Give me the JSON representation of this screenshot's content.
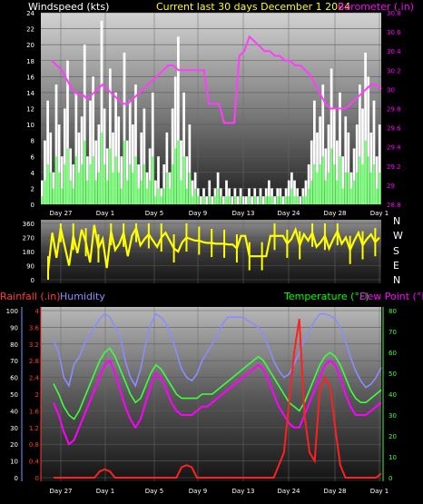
{
  "header": {
    "windspeed_label": "Windspeed (kts)",
    "period_label": "Current last 30 days December 1 2024",
    "barometer_label": "Barometer (.in)"
  },
  "lower_header": {
    "rainfall_label": "Rainfall (.in)",
    "humidity_label": "Humidity",
    "temperature_label": "Temperature (°F)",
    "dewpoint_label": "Dew Point (°F)"
  },
  "colors": {
    "wind_gust": "#ffffff",
    "wind_avg": "#7dff7d",
    "barometer": "#ff3cff",
    "direction": "#ffff00",
    "rain": "#ff2020",
    "humidity": "#8c8cff",
    "temperature": "#40ff40",
    "dewpoint": "#ff00ff",
    "windspeed_label": "#ffffff",
    "period_label": "#ffff00",
    "barometer_label": "#ff00ff",
    "rainfall_label": "#ff3c3c",
    "humidity_label": "#8c8cff",
    "temperature_label": "#00ff00",
    "dewpoint_label": "#ff00ff"
  },
  "chart_data": [
    {
      "type": "bar",
      "name": "wind_and_barometer",
      "x_labels": [
        "Day 27",
        "Day 1",
        "Day 5",
        "Day 9",
        "Day 13",
        "Day 24",
        "Day 28",
        "Day 1"
      ],
      "y_left": {
        "label": "Windspeed (kts)",
        "ylim": [
          0,
          24
        ],
        "ticks": [
          0,
          2,
          4,
          6,
          8,
          10,
          12,
          14,
          16,
          18,
          20,
          22,
          24
        ]
      },
      "y_right": {
        "label": "Barometer (.in)",
        "ylim": [
          28.8,
          30.8
        ],
        "ticks": [
          "28.8",
          "29",
          "29.2",
          "29.4",
          "29.6",
          "29.8",
          "30",
          "30.2",
          "30.4",
          "30.6",
          "30.8"
        ]
      },
      "gust_kts": [
        3,
        8,
        13,
        9,
        4,
        15,
        10,
        6,
        12,
        18,
        7,
        5,
        14,
        9,
        11,
        20,
        6,
        13,
        16,
        8,
        10,
        23,
        12,
        7,
        17,
        9,
        14,
        11,
        6,
        19,
        8,
        13,
        10,
        15,
        5,
        9,
        12,
        4,
        7,
        14,
        3,
        6,
        2,
        5,
        9,
        4,
        12,
        16,
        21,
        8,
        14,
        6,
        10,
        3,
        4,
        2,
        1,
        2,
        1,
        3,
        1,
        2,
        4,
        2,
        1,
        3,
        2,
        1,
        2,
        1,
        2,
        1,
        1,
        2,
        1,
        2,
        1,
        2,
        1,
        2,
        3,
        2,
        1,
        2,
        2,
        1,
        2,
        3,
        4,
        3,
        2,
        1,
        2,
        3,
        5,
        8,
        13,
        9,
        11,
        15,
        7,
        10,
        17,
        12,
        8,
        14,
        6,
        11,
        9,
        4,
        7,
        10,
        15,
        12,
        19,
        16,
        9,
        13,
        6,
        10
      ],
      "avg_kts": [
        1,
        3,
        5,
        4,
        2,
        6,
        4,
        2,
        5,
        7,
        3,
        2,
        6,
        4,
        5,
        8,
        3,
        5,
        6,
        3,
        4,
        9,
        5,
        3,
        7,
        4,
        6,
        4,
        2,
        8,
        3,
        5,
        4,
        6,
        2,
        3,
        5,
        2,
        3,
        6,
        1,
        2,
        1,
        2,
        4,
        2,
        5,
        7,
        8,
        3,
        6,
        2,
        4,
        1,
        2,
        1,
        0,
        1,
        0,
        1,
        0,
        1,
        2,
        1,
        0,
        1,
        1,
        0,
        1,
        0,
        1,
        0,
        0,
        1,
        0,
        1,
        0,
        1,
        0,
        1,
        1,
        1,
        0,
        1,
        1,
        0,
        1,
        1,
        2,
        1,
        1,
        0,
        1,
        1,
        2,
        3,
        5,
        4,
        5,
        6,
        3,
        4,
        7,
        5,
        3,
        6,
        2,
        4,
        4,
        2,
        3,
        4,
        6,
        5,
        8,
        6,
        4,
        5,
        2,
        4
      ],
      "barometer_in": [
        30.3,
        30.25,
        30.2,
        30.1,
        30.0,
        29.95,
        29.95,
        29.9,
        29.95,
        30.0,
        30.05,
        30.0,
        29.95,
        29.9,
        29.85,
        29.85,
        29.9,
        29.95,
        30.0,
        30.05,
        30.1,
        30.15,
        30.2,
        30.25,
        30.25,
        30.2,
        30.2,
        30.2,
        30.2,
        30.2,
        30.2,
        29.85,
        29.85,
        29.85,
        29.65,
        29.65,
        29.65,
        30.35,
        30.4,
        30.55,
        30.5,
        30.45,
        30.4,
        30.4,
        30.35,
        30.35,
        30.3,
        30.3,
        30.25,
        30.25,
        30.2,
        30.15,
        30.05,
        29.95,
        29.85,
        29.8,
        29.8,
        29.8,
        29.8,
        29.85,
        29.9,
        29.95,
        30.0,
        30.05,
        30.05,
        30.0
      ]
    },
    {
      "type": "line",
      "name": "wind_direction",
      "ylim": [
        0,
        360
      ],
      "ticks": [
        0,
        90,
        180,
        270,
        360
      ],
      "direction_labels": [
        "N",
        "W",
        "S",
        "E",
        "N"
      ],
      "direction_deg": [
        60,
        300,
        140,
        330,
        210,
        90,
        280,
        170,
        320,
        240,
        110,
        350,
        200,
        260,
        75,
        310,
        190,
        230,
        300,
        150,
        280,
        330,
        220,
        260,
        290,
        250,
        210,
        270,
        300,
        250,
        200,
        180,
        240,
        270,
        260,
        250,
        250,
        240,
        235,
        235,
        230,
        230,
        230,
        225,
        225,
        200,
        280,
        280,
        150,
        150,
        150,
        150,
        150,
        280,
        280,
        280,
        280,
        230,
        260,
        320,
        220,
        290,
        250,
        300,
        210,
        240,
        280,
        200,
        260,
        310,
        230,
        270,
        190,
        250,
        300,
        220,
        260,
        290,
        240,
        270
      ]
    },
    {
      "type": "line",
      "name": "rain_humidity_temperature",
      "x_labels": [
        "Day 27",
        "Day 1",
        "Day 5",
        "Day 9",
        "Day 13",
        "Day 24",
        "Day 28",
        "Day 1"
      ],
      "y_humidity": {
        "ylim": [
          0,
          100
        ],
        "ticks": [
          0,
          10,
          20,
          30,
          40,
          50,
          60,
          70,
          80,
          90,
          100
        ]
      },
      "y_rain": {
        "ylim": [
          0,
          4
        ],
        "ticks": [
          "0",
          "0.4",
          "0.8",
          "1.2",
          "1.6",
          "2",
          "2.4",
          "2.8",
          "3.2",
          "3.6",
          "4"
        ]
      },
      "y_temp": {
        "ylim": [
          0,
          80
        ],
        "ticks": [
          0,
          10,
          20,
          30,
          40,
          50,
          60,
          70,
          80
        ]
      },
      "humidity_pct": [
        82,
        75,
        60,
        55,
        68,
        72,
        80,
        85,
        90,
        95,
        98,
        96,
        90,
        85,
        70,
        60,
        55,
        65,
        80,
        92,
        98,
        96,
        92,
        85,
        75,
        65,
        60,
        58,
        62,
        70,
        75,
        80,
        85,
        92,
        96,
        96,
        96,
        96,
        94,
        92,
        90,
        86,
        78,
        70,
        64,
        60,
        62,
        68,
        75,
        82,
        88,
        94,
        98,
        98,
        97,
        95,
        90,
        82,
        72,
        64,
        58,
        54,
        56,
        60,
        66
      ],
      "temperature_f": [
        45,
        40,
        34,
        30,
        28,
        32,
        38,
        44,
        50,
        56,
        60,
        62,
        58,
        52,
        46,
        40,
        36,
        38,
        44,
        50,
        54,
        52,
        48,
        44,
        40,
        38,
        38,
        38,
        38,
        40,
        40,
        40,
        42,
        44,
        46,
        48,
        50,
        52,
        54,
        56,
        58,
        56,
        52,
        48,
        44,
        40,
        36,
        34,
        32,
        36,
        42,
        48,
        54,
        58,
        60,
        58,
        54,
        48,
        42,
        38,
        36,
        36,
        38,
        40,
        42
      ],
      "dewpoint_f": [
        36,
        30,
        22,
        16,
        18,
        24,
        30,
        36,
        42,
        48,
        54,
        56,
        50,
        42,
        34,
        28,
        24,
        28,
        36,
        44,
        50,
        48,
        42,
        36,
        32,
        30,
        30,
        30,
        32,
        34,
        34,
        36,
        38,
        40,
        42,
        44,
        46,
        48,
        50,
        52,
        54,
        52,
        46,
        40,
        34,
        30,
        26,
        24,
        24,
        30,
        36,
        42,
        48,
        54,
        56,
        54,
        48,
        40,
        34,
        30,
        30,
        30,
        32,
        34,
        36
      ],
      "rain_in": [
        0,
        0,
        0,
        0,
        0,
        0,
        0,
        0,
        0,
        0.15,
        0.2,
        0.15,
        0,
        0,
        0,
        0,
        0,
        0,
        0,
        0,
        0,
        0,
        0,
        0,
        0,
        0.25,
        0.3,
        0.25,
        0,
        0,
        0,
        0,
        0,
        0,
        0,
        0,
        0,
        0,
        0,
        0,
        0,
        0,
        0,
        0,
        0.3,
        0.6,
        1.8,
        3.0,
        3.8,
        1.5,
        0.6,
        0.4,
        2.1,
        2.4,
        2.2,
        1.2,
        0.3,
        0,
        0,
        0,
        0,
        0,
        0,
        0,
        0.1
      ]
    }
  ]
}
